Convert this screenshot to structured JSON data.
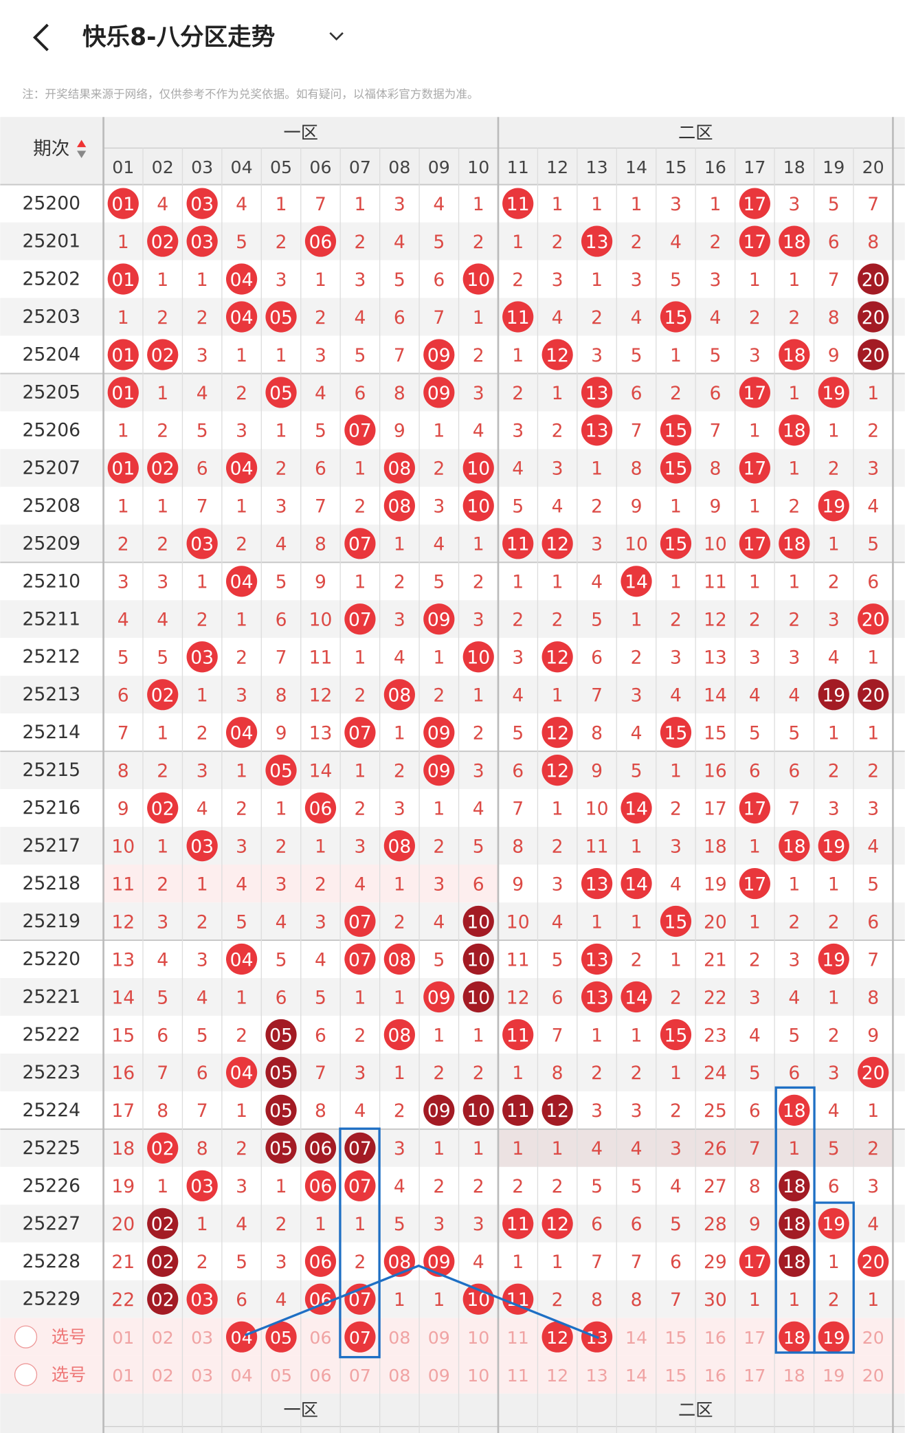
{
  "header": {
    "title": "快乐8-八分区走势",
    "note": "注：开奖结果来源于网络，仅供参考不作为兑奖依据。如有疑问，以福体彩官方数据为准。"
  },
  "table": {
    "period_label": "期次",
    "zones": [
      "一区",
      "二区"
    ],
    "columns": [
      "01",
      "02",
      "03",
      "04",
      "05",
      "06",
      "07",
      "08",
      "09",
      "10",
      "11",
      "12",
      "13",
      "14",
      "15",
      "16",
      "17",
      "18",
      "19",
      "20"
    ],
    "rows": [
      {
        "period": "25200",
        "cells": [
          "01",
          "4",
          "03",
          "4",
          "1",
          "7",
          "1",
          "3",
          "4",
          "1",
          "11",
          "1",
          "1",
          "1",
          "3",
          "1",
          "17",
          "3",
          "5",
          "7"
        ],
        "balls": "r.r.......r.....r..."
      },
      {
        "period": "25201",
        "cells": [
          "1",
          "02",
          "03",
          "5",
          "2",
          "06",
          "2",
          "4",
          "5",
          "2",
          "1",
          "2",
          "13",
          "2",
          "4",
          "2",
          "17",
          "18",
          "6",
          "8"
        ],
        "balls": ".rr..r......r...rr.."
      },
      {
        "period": "25202",
        "cells": [
          "01",
          "1",
          "1",
          "04",
          "3",
          "1",
          "3",
          "5",
          "6",
          "10",
          "2",
          "3",
          "1",
          "3",
          "5",
          "3",
          "1",
          "1",
          "7",
          "20"
        ],
        "balls": "r..r.....r.........d"
      },
      {
        "period": "25203",
        "cells": [
          "1",
          "2",
          "2",
          "04",
          "05",
          "2",
          "4",
          "6",
          "7",
          "1",
          "11",
          "4",
          "2",
          "4",
          "15",
          "4",
          "2",
          "2",
          "8",
          "20"
        ],
        "balls": "...rr.....r...r....d"
      },
      {
        "period": "25204",
        "cells": [
          "01",
          "02",
          "3",
          "1",
          "1",
          "3",
          "5",
          "7",
          "09",
          "2",
          "1",
          "12",
          "3",
          "5",
          "1",
          "5",
          "3",
          "18",
          "9",
          "20"
        ],
        "balls": "rr......r..r.....r.d"
      },
      {
        "period": "25205",
        "cells": [
          "01",
          "1",
          "4",
          "2",
          "05",
          "4",
          "6",
          "8",
          "09",
          "3",
          "2",
          "1",
          "13",
          "6",
          "2",
          "6",
          "17",
          "1",
          "19",
          "1"
        ],
        "balls": "r...r...r...r...r.r."
      },
      {
        "period": "25206",
        "cells": [
          "1",
          "2",
          "5",
          "3",
          "1",
          "5",
          "07",
          "9",
          "1",
          "4",
          "3",
          "2",
          "13",
          "7",
          "15",
          "7",
          "1",
          "18",
          "1",
          "2"
        ],
        "balls": "......r.....r.r..r.."
      },
      {
        "period": "25207",
        "cells": [
          "01",
          "02",
          "6",
          "04",
          "2",
          "6",
          "1",
          "08",
          "2",
          "10",
          "4",
          "3",
          "1",
          "8",
          "15",
          "8",
          "17",
          "1",
          "2",
          "3"
        ],
        "balls": "rr.r...r.r....r.r..."
      },
      {
        "period": "25208",
        "cells": [
          "1",
          "1",
          "7",
          "1",
          "3",
          "7",
          "2",
          "08",
          "3",
          "10",
          "5",
          "4",
          "2",
          "9",
          "1",
          "9",
          "1",
          "2",
          "19",
          "4"
        ],
        "balls": ".......r.r........r."
      },
      {
        "period": "25209",
        "cells": [
          "2",
          "2",
          "03",
          "2",
          "4",
          "8",
          "07",
          "1",
          "4",
          "1",
          "11",
          "12",
          "3",
          "10",
          "15",
          "10",
          "17",
          "18",
          "1",
          "5"
        ],
        "balls": "..r...r...rr..r.rr.."
      },
      {
        "period": "25210",
        "cells": [
          "3",
          "3",
          "1",
          "04",
          "5",
          "9",
          "1",
          "2",
          "5",
          "2",
          "1",
          "1",
          "4",
          "14",
          "1",
          "11",
          "1",
          "1",
          "2",
          "6"
        ],
        "balls": "...r.........r......"
      },
      {
        "period": "25211",
        "cells": [
          "4",
          "4",
          "2",
          "1",
          "6",
          "10",
          "07",
          "3",
          "09",
          "3",
          "2",
          "2",
          "5",
          "1",
          "2",
          "12",
          "2",
          "2",
          "3",
          "20"
        ],
        "balls": "......r.r..........r"
      },
      {
        "period": "25212",
        "cells": [
          "5",
          "5",
          "03",
          "2",
          "7",
          "11",
          "1",
          "4",
          "1",
          "10",
          "3",
          "12",
          "6",
          "2",
          "3",
          "13",
          "3",
          "3",
          "4",
          "1"
        ],
        "balls": "..r......r.r........"
      },
      {
        "period": "25213",
        "cells": [
          "6",
          "02",
          "1",
          "3",
          "8",
          "12",
          "2",
          "08",
          "2",
          "1",
          "4",
          "1",
          "7",
          "3",
          "4",
          "14",
          "4",
          "4",
          "19",
          "20"
        ],
        "balls": ".r.....r..........dd"
      },
      {
        "period": "25214",
        "cells": [
          "7",
          "1",
          "2",
          "04",
          "9",
          "13",
          "07",
          "1",
          "09",
          "2",
          "5",
          "12",
          "8",
          "4",
          "15",
          "15",
          "5",
          "5",
          "1",
          "1"
        ],
        "balls": "...r..r.r..r..r....."
      },
      {
        "period": "25215",
        "cells": [
          "8",
          "2",
          "3",
          "1",
          "05",
          "14",
          "1",
          "2",
          "09",
          "3",
          "6",
          "12",
          "9",
          "5",
          "1",
          "16",
          "6",
          "6",
          "2",
          "2"
        ],
        "balls": "....r...r..r........"
      },
      {
        "period": "25216",
        "cells": [
          "9",
          "02",
          "4",
          "2",
          "1",
          "06",
          "2",
          "3",
          "1",
          "4",
          "7",
          "1",
          "10",
          "14",
          "2",
          "17",
          "17",
          "7",
          "3",
          "3"
        ],
        "balls": ".r...r.......r..r..."
      },
      {
        "period": "25217",
        "cells": [
          "10",
          "1",
          "03",
          "3",
          "2",
          "1",
          "3",
          "08",
          "2",
          "5",
          "8",
          "2",
          "11",
          "1",
          "3",
          "18",
          "1",
          "18",
          "19",
          "4"
        ],
        "balls": "..r....r.........rr."
      },
      {
        "period": "25218",
        "cells": [
          "11",
          "2",
          "1",
          "4",
          "3",
          "2",
          "4",
          "1",
          "3",
          "6",
          "9",
          "3",
          "13",
          "14",
          "4",
          "19",
          "17",
          "1",
          "1",
          "5"
        ],
        "balls": "............rr..r..."
      },
      {
        "period": "25219",
        "cells": [
          "12",
          "3",
          "2",
          "5",
          "4",
          "3",
          "07",
          "2",
          "4",
          "10",
          "10",
          "4",
          "1",
          "1",
          "15",
          "20",
          "1",
          "2",
          "2",
          "6"
        ],
        "balls": "......r..d....r....."
      },
      {
        "period": "25220",
        "cells": [
          "13",
          "4",
          "3",
          "04",
          "5",
          "4",
          "07",
          "08",
          "5",
          "10",
          "11",
          "5",
          "13",
          "2",
          "1",
          "21",
          "2",
          "3",
          "19",
          "7"
        ],
        "balls": "...r..rr.d..r.....r."
      },
      {
        "period": "25221",
        "cells": [
          "14",
          "5",
          "4",
          "1",
          "6",
          "5",
          "1",
          "1",
          "09",
          "10",
          "12",
          "6",
          "13",
          "14",
          "2",
          "22",
          "3",
          "4",
          "1",
          "8"
        ],
        "balls": "........rd..rr......"
      },
      {
        "period": "25222",
        "cells": [
          "15",
          "6",
          "5",
          "2",
          "05",
          "6",
          "2",
          "08",
          "1",
          "1",
          "11",
          "7",
          "1",
          "1",
          "15",
          "23",
          "4",
          "5",
          "2",
          "9"
        ],
        "balls": "....d..r..r...r....."
      },
      {
        "period": "25223",
        "cells": [
          "16",
          "7",
          "6",
          "04",
          "05",
          "7",
          "3",
          "1",
          "2",
          "2",
          "1",
          "8",
          "2",
          "2",
          "1",
          "24",
          "5",
          "6",
          "3",
          "20"
        ],
        "balls": "...rd..............r"
      },
      {
        "period": "25224",
        "cells": [
          "17",
          "8",
          "7",
          "1",
          "05",
          "8",
          "4",
          "2",
          "09",
          "10",
          "11",
          "12",
          "3",
          "3",
          "2",
          "25",
          "6",
          "18",
          "4",
          "1"
        ],
        "balls": "....d...dddd.....r.."
      },
      {
        "period": "25225",
        "cells": [
          "18",
          "02",
          "8",
          "2",
          "05",
          "06",
          "07",
          "3",
          "1",
          "1",
          "1",
          "1",
          "4",
          "4",
          "3",
          "26",
          "7",
          "1",
          "5",
          "2"
        ],
        "balls": ".r..ddd............."
      },
      {
        "period": "25226",
        "cells": [
          "19",
          "1",
          "03",
          "3",
          "1",
          "06",
          "07",
          "4",
          "2",
          "2",
          "2",
          "2",
          "5",
          "5",
          "4",
          "27",
          "8",
          "18",
          "6",
          "3"
        ],
        "balls": "..r..rr..........d.."
      },
      {
        "period": "25227",
        "cells": [
          "20",
          "02",
          "1",
          "4",
          "2",
          "1",
          "1",
          "5",
          "3",
          "3",
          "11",
          "12",
          "6",
          "6",
          "5",
          "28",
          "9",
          "18",
          "19",
          "4"
        ],
        "balls": ".d........rr.....dr."
      },
      {
        "period": "25228",
        "cells": [
          "21",
          "02",
          "2",
          "5",
          "3",
          "06",
          "2",
          "08",
          "09",
          "4",
          "1",
          "1",
          "7",
          "7",
          "6",
          "29",
          "17",
          "18",
          "1",
          "20"
        ],
        "balls": ".d...r.rr.......rd.r"
      },
      {
        "period": "25229",
        "cells": [
          "22",
          "02",
          "03",
          "6",
          "4",
          "06",
          "07",
          "1",
          "1",
          "10",
          "11",
          "2",
          "8",
          "8",
          "7",
          "30",
          "1",
          "1",
          "2",
          "1"
        ],
        "balls": ".dr..rr..rr........."
      }
    ],
    "select_rows": [
      {
        "label": "选号",
        "balls": "...rr.r....rr....rr."
      },
      {
        "label": "选号",
        "balls": "...................."
      }
    ]
  }
}
